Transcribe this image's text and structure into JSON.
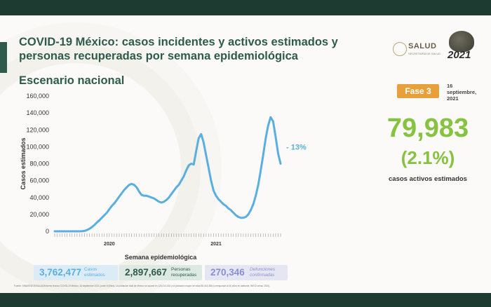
{
  "header": {
    "title": "COVID-19 México: casos incidentes y activos estimados y personas recuperadas por semana epidemiológica",
    "subtitle": "Escenario nacional"
  },
  "logos": {
    "salud_word": "SALUD",
    "salud_tag": "SECRETARÍA DE SALUD",
    "year_logo": "2021"
  },
  "status": {
    "fase": "Fase 3",
    "date": "16 septiembre, 2021"
  },
  "highlight": {
    "active_cases": "79,983",
    "active_pct": "(2.1%)",
    "caption": "casos activos estimados"
  },
  "stats": {
    "cases": {
      "value": "3,762,477",
      "label": "Casos estimados"
    },
    "recovered": {
      "value": "2,897,667",
      "label": "Personas recuperadas"
    },
    "deaths": {
      "value": "270,346",
      "label": "Defunciones confirmadas"
    }
  },
  "footnote": "Fuente: SINAVE/DGE/SALUD/Informe técnico COVID-19 México, 16 septiembre 2021 (corte 9:00hrs). La población total de México se asume en 126,014,024 y la población mayor de edad 80,443,386 (corresponde al 30 años en adelante, INEGI censo 2020).",
  "colors": {
    "brand_green": "#2e5b4b",
    "line_blue": "#5aaee0",
    "highlight_green": "#86c341",
    "fase_orange": "#e8a03a"
  },
  "chart_data": {
    "type": "line",
    "title": "",
    "xlabel": "Semana epidemiológica",
    "ylabel": "Casos estimados",
    "ylim": [
      0,
      160000
    ],
    "yticks": [
      0,
      20000,
      40000,
      60000,
      80000,
      100000,
      120000,
      140000,
      160000
    ],
    "ytick_labels": [
      "0",
      "20,000",
      "40,000",
      "60,000",
      "80,000",
      "100,000",
      "120,000",
      "140,000",
      "160,000"
    ],
    "x_year_labels": [
      {
        "label": "2020",
        "week_index": 22
      },
      {
        "label": "2021",
        "week_index": 65
      }
    ],
    "annotation": "- 13%",
    "grid": false,
    "series": [
      {
        "values": [
          0,
          0,
          0,
          0,
          0,
          0,
          0,
          0,
          0,
          0,
          0,
          100,
          500,
          1500,
          3000,
          5000,
          7500,
          10500,
          13000,
          16000,
          19000,
          22000,
          26000,
          30000,
          33000,
          37000,
          41000,
          45000,
          49000,
          52000,
          55000,
          56000,
          55000,
          52000,
          47000,
          43000,
          42000,
          42000,
          41000,
          40000,
          39000,
          37000,
          35000,
          34000,
          35000,
          37000,
          40000,
          44000,
          48000,
          52000,
          55000,
          60000,
          65000,
          72000,
          78000,
          80000,
          79000,
          95000,
          110000,
          115000,
          105000,
          90000,
          75000,
          60000,
          48000,
          42000,
          38000,
          35000,
          32000,
          30000,
          27000,
          25000,
          22000,
          19000,
          17000,
          16000,
          16000,
          17000,
          20000,
          25000,
          32000,
          42000,
          55000,
          72000,
          90000,
          110000,
          125000,
          135000,
          130000,
          112000,
          92000,
          80000
        ]
      }
    ]
  }
}
